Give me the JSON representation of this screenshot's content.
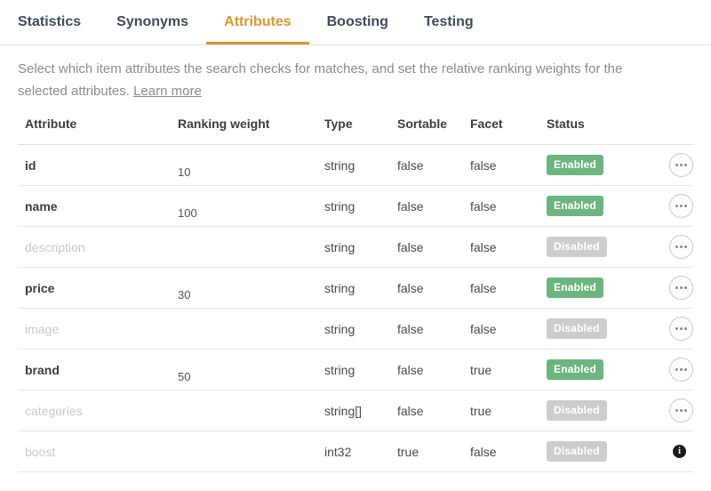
{
  "tabs": [
    {
      "label": "Statistics",
      "active": false
    },
    {
      "label": "Synonyms",
      "active": false
    },
    {
      "label": "Attributes",
      "active": true
    },
    {
      "label": "Boosting",
      "active": false
    },
    {
      "label": "Testing",
      "active": false
    }
  ],
  "description": {
    "text": "Select which item attributes the search checks for matches, and set the relative ranking weights for the selected attributes.",
    "link_label": "Learn more"
  },
  "table": {
    "headers": {
      "attribute": "Attribute",
      "weight": "Ranking weight",
      "type": "Type",
      "sortable": "Sortable",
      "facet": "Facet",
      "status": "Status"
    },
    "rows": [
      {
        "attribute": "id",
        "weight": "10",
        "type": "string",
        "sortable": "false",
        "facet": "false",
        "status": "Enabled",
        "action": "menu"
      },
      {
        "attribute": "name",
        "weight": "100",
        "type": "string",
        "sortable": "false",
        "facet": "false",
        "status": "Enabled",
        "action": "menu"
      },
      {
        "attribute": "description",
        "weight": "",
        "type": "string",
        "sortable": "false",
        "facet": "false",
        "status": "Disabled",
        "action": "menu"
      },
      {
        "attribute": "price",
        "weight": "30",
        "type": "string",
        "sortable": "false",
        "facet": "false",
        "status": "Enabled",
        "action": "menu"
      },
      {
        "attribute": "image",
        "weight": "",
        "type": "string",
        "sortable": "false",
        "facet": "false",
        "status": "Disabled",
        "action": "menu"
      },
      {
        "attribute": "brand",
        "weight": "50",
        "type": "string",
        "sortable": "false",
        "facet": "true",
        "status": "Enabled",
        "action": "menu"
      },
      {
        "attribute": "categories",
        "weight": "",
        "type": "string[]",
        "sortable": "false",
        "facet": "true",
        "status": "Disabled",
        "action": "menu"
      },
      {
        "attribute": "boost",
        "weight": "",
        "type": "int32",
        "sortable": "true",
        "facet": "false",
        "status": "Disabled",
        "action": "info"
      }
    ]
  },
  "colors": {
    "accent_orange": "#dd9632",
    "status_enabled_green": "#6db57e",
    "status_disabled_gray": "#cdcdcd",
    "tab_text": "#3e4c5a"
  }
}
